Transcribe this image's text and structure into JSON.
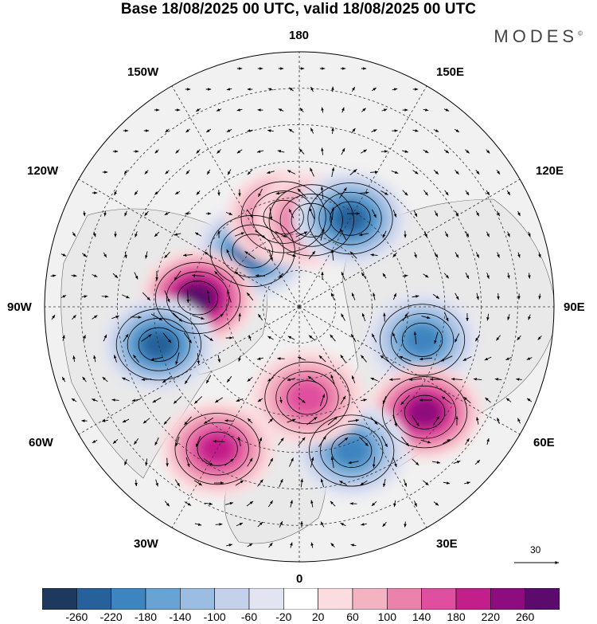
{
  "header": {
    "title": "Base 18/08/2025 00 UTC, valid 18/08/2025 00 UTC",
    "brand": "MODES",
    "brand_mark": "©"
  },
  "map": {
    "projection": "north-polar-stereographic",
    "longitude_labels": {
      "top": "180",
      "top_left": "150W",
      "top_right": "150E",
      "upper_left": "120W",
      "upper_right": "120E",
      "left": "90W",
      "right": "90E",
      "lower_left": "60W",
      "lower_right": "60E",
      "bottom_left": "30W",
      "bottom_right": "30E",
      "bottom": "0"
    },
    "vector_scale": {
      "value": "30"
    },
    "anomaly_centers": [
      {
        "id": "neg-beaufort",
        "lon": -140,
        "lat": 70,
        "sign": "negative",
        "magnitude": 180
      },
      {
        "id": "pos-canada",
        "lon": -95,
        "lat": 62,
        "sign": "positive",
        "magnitude": 240
      },
      {
        "id": "neg-labrador",
        "lon": -75,
        "lat": 50,
        "sign": "negative",
        "magnitude": 200
      },
      {
        "id": "pos-chukchi",
        "lon": -170,
        "lat": 65,
        "sign": "positive",
        "magnitude": 160
      },
      {
        "id": "pos-east-siberia",
        "lon": 172,
        "lat": 66,
        "sign": "positive",
        "magnitude": 120
      },
      {
        "id": "neg-kamchatka",
        "lon": 150,
        "lat": 62,
        "sign": "negative",
        "magnitude": 200
      },
      {
        "id": "neg-west-siberia",
        "lon": 75,
        "lat": 55,
        "sign": "negative",
        "magnitude": 160
      },
      {
        "id": "pos-caspian",
        "lon": 50,
        "lat": 45,
        "sign": "positive",
        "magnitude": 180
      },
      {
        "id": "neg-scandinavia",
        "lon": 20,
        "lat": 48,
        "sign": "negative",
        "magnitude": 160
      },
      {
        "id": "pos-norway-sea",
        "lon": 5,
        "lat": 65,
        "sign": "positive",
        "magnitude": 120
      },
      {
        "id": "pos-mid-atlantic",
        "lon": -30,
        "lat": 45,
        "sign": "positive",
        "magnitude": 140
      }
    ]
  },
  "colorbar": {
    "levels": [
      "-260",
      "-220",
      "-180",
      "-140",
      "-100",
      "-60",
      "-20",
      "20",
      "60",
      "100",
      "140",
      "180",
      "220",
      "260"
    ],
    "colors": [
      "#1d3a5e",
      "#27609a",
      "#3c85c0",
      "#68a3d3",
      "#9cbde2",
      "#c4d1ea",
      "#e3e4f2",
      "#ffffff",
      "#fbdcdf",
      "#f4b3c3",
      "#ec82ac",
      "#e04f9f",
      "#c31f8a",
      "#8e0c7d",
      "#5a0b6c"
    ]
  }
}
